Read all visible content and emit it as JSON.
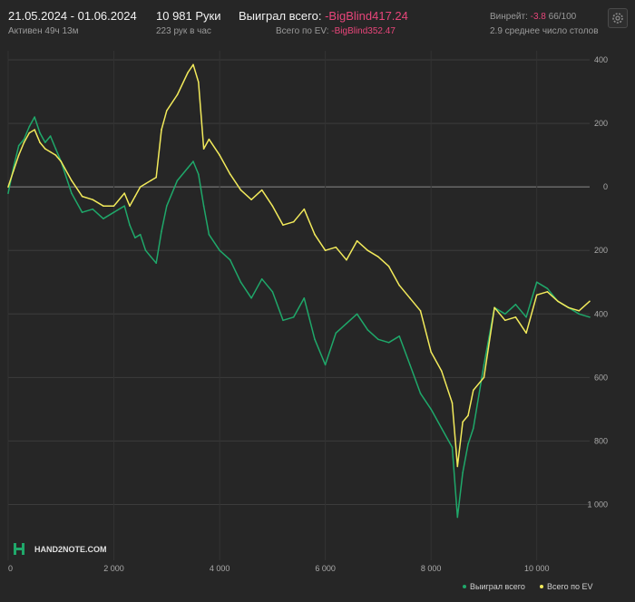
{
  "header": {
    "date_range": "21.05.2024 - 01.06.2024",
    "active": "Активен 49ч 13м",
    "hands": "10 981 Руки",
    "hands_rate": "223 рук в час",
    "won_label": "Выиграл всего: ",
    "won_value": "-BigBlind417.24",
    "ev_label": "Всего по EV: ",
    "ev_value": "-BigBlind352.47",
    "winrate_label": "Винрейт: ",
    "winrate_value": "-3.8",
    "winrate_unit": " 66/100",
    "tables": "2.9 среднее число столов",
    "gear_icon": "gear-icon"
  },
  "logo": {
    "text": "HAND2NOTE.COM",
    "icon": "h2n-logo-icon"
  },
  "colors": {
    "won": "#1fa86a",
    "ev": "#f2ea5b",
    "background": "#262626",
    "negative": "#e8457a"
  },
  "chart_data": {
    "type": "line",
    "xlim": [
      0,
      11000
    ],
    "ylim": [
      -1050,
      400
    ],
    "x_ticks": [
      {
        "v": 0,
        "label": "0"
      },
      {
        "v": 2000,
        "label": "2 000"
      },
      {
        "v": 4000,
        "label": "4 000"
      },
      {
        "v": 6000,
        "label": "6 000"
      },
      {
        "v": 8000,
        "label": "8 000"
      },
      {
        "v": 10000,
        "label": "10 000"
      }
    ],
    "y_ticks": [
      {
        "v": 400,
        "label": "400"
      },
      {
        "v": 200,
        "label": "200"
      },
      {
        "v": 0,
        "label": "0"
      },
      {
        "v": -200,
        "label": "200"
      },
      {
        "v": -400,
        "label": "400"
      },
      {
        "v": -600,
        "label": "600"
      },
      {
        "v": -800,
        "label": "800"
      },
      {
        "v": -1000,
        "label": "1 000"
      }
    ],
    "grid": true,
    "legend_position": "bottom-right",
    "series": [
      {
        "name": "Выиграл всего",
        "color": "#1fa86a",
        "x": [
          0,
          100,
          200,
          300,
          400,
          500,
          600,
          700,
          800,
          900,
          1000,
          1200,
          1400,
          1600,
          1800,
          2000,
          2200,
          2300,
          2400,
          2500,
          2600,
          2700,
          2800,
          2900,
          3000,
          3200,
          3400,
          3500,
          3600,
          3700,
          3800,
          4000,
          4200,
          4400,
          4600,
          4800,
          5000,
          5200,
          5400,
          5600,
          5800,
          6000,
          6200,
          6400,
          6600,
          6800,
          7000,
          7200,
          7400,
          7600,
          7800,
          8000,
          8200,
          8400,
          8500,
          8600,
          8700,
          8800,
          9000,
          9200,
          9400,
          9600,
          9800,
          10000,
          10200,
          10400,
          10600,
          10800,
          11000
        ],
        "y": [
          -20,
          60,
          130,
          150,
          190,
          220,
          170,
          140,
          160,
          120,
          80,
          -20,
          -80,
          -70,
          -100,
          -80,
          -60,
          -120,
          -160,
          -150,
          -200,
          -220,
          -240,
          -140,
          -60,
          20,
          60,
          80,
          40,
          -60,
          -150,
          -200,
          -230,
          -300,
          -350,
          -290,
          -330,
          -420,
          -410,
          -350,
          -480,
          -560,
          -460,
          -430,
          -400,
          -450,
          -480,
          -490,
          -470,
          -560,
          -650,
          -700,
          -760,
          -820,
          -1040,
          -900,
          -810,
          -760,
          -560,
          -380,
          -400,
          -370,
          -410,
          -300,
          -320,
          -360,
          -380,
          -400,
          -410
        ]
      },
      {
        "name": "Всего по EV",
        "color": "#f2ea5b",
        "x": [
          0,
          100,
          200,
          300,
          400,
          500,
          600,
          700,
          800,
          900,
          1000,
          1200,
          1400,
          1600,
          1800,
          2000,
          2200,
          2300,
          2400,
          2500,
          2600,
          2700,
          2800,
          2900,
          3000,
          3200,
          3400,
          3500,
          3600,
          3700,
          3800,
          4000,
          4200,
          4400,
          4600,
          4800,
          5000,
          5200,
          5400,
          5600,
          5800,
          6000,
          6200,
          6400,
          6600,
          6800,
          7000,
          7200,
          7400,
          7600,
          7800,
          8000,
          8200,
          8400,
          8500,
          8600,
          8700,
          8800,
          9000,
          9200,
          9400,
          9600,
          9800,
          10000,
          10200,
          10400,
          10600,
          10800,
          11000
        ],
        "y": [
          0,
          50,
          100,
          140,
          170,
          180,
          140,
          120,
          110,
          100,
          80,
          20,
          -30,
          -40,
          -60,
          -60,
          -20,
          -60,
          -30,
          0,
          10,
          20,
          30,
          180,
          240,
          290,
          360,
          385,
          330,
          120,
          150,
          100,
          40,
          -10,
          -40,
          -10,
          -60,
          -120,
          -110,
          -70,
          -150,
          -200,
          -190,
          -230,
          -170,
          -200,
          -220,
          -250,
          -310,
          -350,
          -390,
          -520,
          -580,
          -680,
          -880,
          -740,
          -720,
          -640,
          -600,
          -380,
          -420,
          -410,
          -460,
          -340,
          -330,
          -360,
          -380,
          -390,
          -360
        ]
      }
    ]
  }
}
